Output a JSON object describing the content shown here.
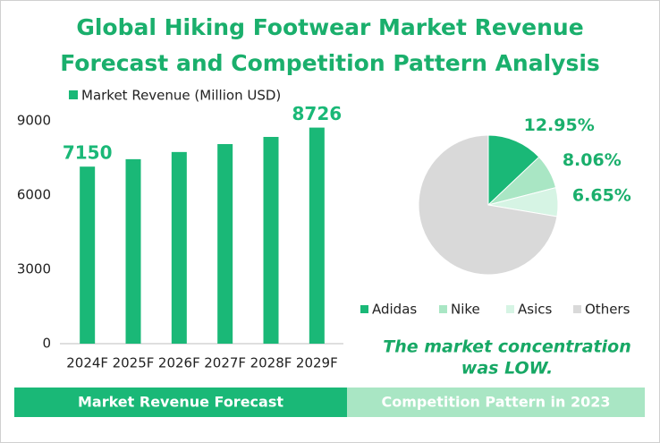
{
  "title": "Global Hiking Footwear Market Revenue Forecast and Competition Pattern Analysis",
  "annotation": [
    "The market concentration",
    "was LOW."
  ],
  "footer": [
    "Market Revenue Forecast",
    "Competition Pattern in 2023"
  ],
  "chart_data": [
    {
      "type": "bar",
      "categories": [
        "2024F",
        "2025F",
        "2026F",
        "2027F",
        "2028F",
        "2029F"
      ],
      "series": [
        {
          "name": "Market Revenue (Million USD)",
          "color": "#1ab877",
          "values": [
            7150,
            7450,
            7740,
            8060,
            8350,
            8726
          ],
          "value_labels": [
            "7150",
            null,
            null,
            null,
            null,
            "8726"
          ]
        }
      ],
      "ylim": [
        0,
        9000
      ],
      "yticks": [
        0,
        3000,
        6000,
        9000
      ],
      "grid": false,
      "legend": "top"
    },
    {
      "type": "pie",
      "categories": [
        "Adidas",
        "Nike",
        "Asics",
        "Others"
      ],
      "values": [
        12.95,
        8.06,
        6.65,
        72.34
      ],
      "value_labels": [
        "12.95%",
        "8.06%",
        "6.65%",
        null
      ],
      "colors": [
        "#1ab877",
        "#a9e6c4",
        "#d6f4e4",
        "#d9d9d9"
      ],
      "legend": "bottom"
    }
  ]
}
